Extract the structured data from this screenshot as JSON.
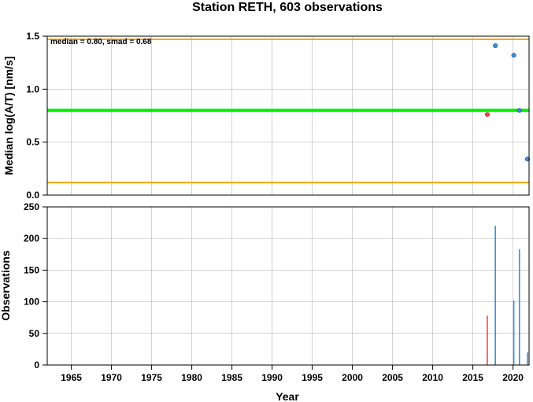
{
  "colors": {
    "median_line": "#00ee00",
    "smad_lines": "#ffa500",
    "grid": "#aaaaaa",
    "series_red": "#ff4040",
    "series_blue": "#3a8fd9"
  },
  "chart_data": [
    {
      "type": "scatter",
      "title": "Station RETH, 603 observations",
      "ylabel": "Median log(A/T) [nm/s]",
      "annotation": "median = 0.80, smad = 0.68",
      "xlim": [
        1962,
        2022
      ],
      "ylim": [
        0,
        1.5
      ],
      "y_ticks": [
        0,
        0.5,
        1.0,
        1.5
      ],
      "y_tick_labels": [
        "0.0",
        "0.5",
        "1.0",
        "1.5"
      ],
      "grid": true,
      "reference_lines": [
        {
          "role": "median",
          "y": 0.8,
          "color": "#00ee00"
        },
        {
          "role": "upper",
          "y": 1.47,
          "color": "#ffa500"
        },
        {
          "role": "lower",
          "y": 0.12,
          "color": "#ffa500"
        }
      ],
      "points": [
        {
          "x": 2016.8,
          "y": 0.76,
          "color": "#ff4040"
        },
        {
          "x": 2017.8,
          "y": 1.41,
          "color": "#3a8fd9"
        },
        {
          "x": 2020.1,
          "y": 1.32,
          "color": "#3a8fd9"
        },
        {
          "x": 2020.8,
          "y": 0.8,
          "color": "#3a8fd9"
        },
        {
          "x": 2021.8,
          "y": 0.34,
          "color": "#3a8fd9"
        }
      ]
    },
    {
      "type": "bar",
      "xlabel": "Year",
      "ylabel": "Observations",
      "xlim": [
        1962,
        2022
      ],
      "ylim": [
        0,
        250
      ],
      "x_ticks": [
        1965,
        1970,
        1975,
        1980,
        1985,
        1990,
        1995,
        2000,
        2005,
        2010,
        2015,
        2020
      ],
      "x_tick_labels": [
        "1965",
        "1970",
        "1975",
        "1980",
        "1985",
        "1990",
        "1995",
        "2000",
        "2005",
        "2010",
        "2015",
        "2020"
      ],
      "y_ticks": [
        0,
        50,
        100,
        150,
        200,
        250
      ],
      "y_tick_labels": [
        "0",
        "50",
        "100",
        "150",
        "200",
        "250"
      ],
      "grid": true,
      "bars": [
        {
          "x": 2016.8,
          "value": 78,
          "color": "#ff4040"
        },
        {
          "x": 2017.8,
          "value": 220,
          "color": "#3a8fd9"
        },
        {
          "x": 2020.1,
          "value": 102,
          "color": "#3a8fd9"
        },
        {
          "x": 2020.8,
          "value": 183,
          "color": "#3a8fd9"
        },
        {
          "x": 2021.8,
          "value": 20,
          "color": "#3a8fd9"
        }
      ]
    }
  ]
}
